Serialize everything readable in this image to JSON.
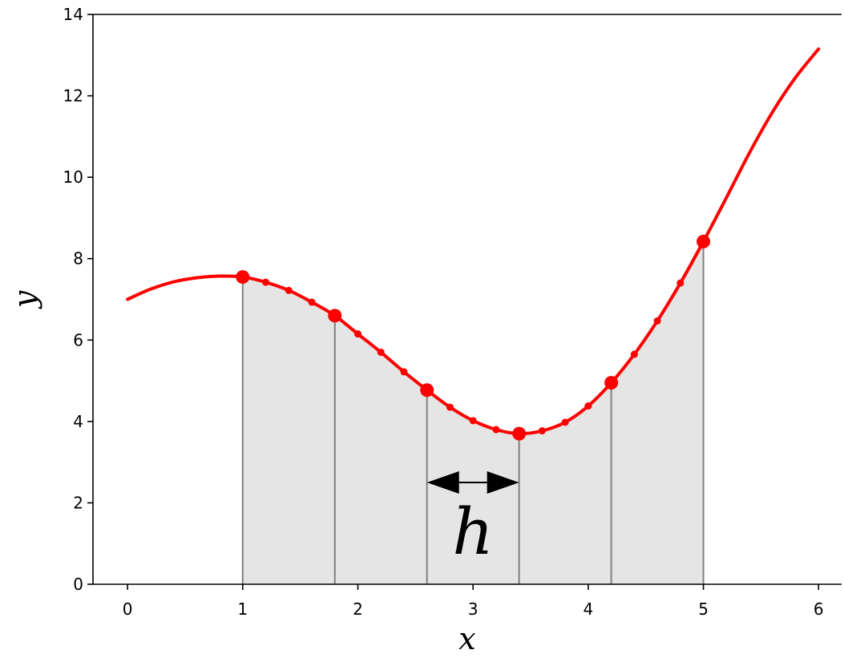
{
  "chart_data": {
    "type": "line",
    "title": "",
    "xlabel": "x",
    "ylabel": "y",
    "xlim": [
      -0.3,
      6.2
    ],
    "ylim": [
      0,
      14
    ],
    "xticks": [
      "0",
      "1",
      "2",
      "3",
      "4",
      "5",
      "6"
    ],
    "yticks": [
      "0",
      "2",
      "4",
      "6",
      "8",
      "10",
      "12",
      "14"
    ],
    "grid": false,
    "legend": "none",
    "curve": {
      "color": "#ff0000",
      "x": [
        0.0,
        0.2,
        0.4,
        0.6,
        0.8,
        1.0,
        1.2,
        1.4,
        1.6,
        1.8,
        2.0,
        2.2,
        2.4,
        2.6,
        2.8,
        3.0,
        3.2,
        3.4,
        3.6,
        3.8,
        4.0,
        4.2,
        4.4,
        4.6,
        4.8,
        5.0,
        5.2,
        5.4,
        5.6,
        5.8,
        6.0
      ],
      "y": [
        7.0,
        7.25,
        7.43,
        7.53,
        7.57,
        7.55,
        7.42,
        7.22,
        6.93,
        6.6,
        6.15,
        5.7,
        5.22,
        4.77,
        4.35,
        4.02,
        3.8,
        3.7,
        3.77,
        3.98,
        4.38,
        4.95,
        5.65,
        6.47,
        7.4,
        8.42,
        9.5,
        10.6,
        11.6,
        12.45,
        13.15
      ]
    },
    "nodes": {
      "x": [
        1.0,
        1.8,
        2.6,
        3.4,
        4.2,
        5.0
      ],
      "y": [
        7.55,
        6.6,
        4.77,
        3.7,
        4.95,
        8.42
      ]
    },
    "quad_points": {
      "x": [
        1.2,
        1.4,
        1.6,
        2.0,
        2.2,
        2.4,
        2.8,
        3.0,
        3.2,
        3.6,
        3.8,
        4.0,
        4.4,
        4.6,
        4.8
      ],
      "y": [
        7.42,
        7.22,
        6.93,
        6.15,
        5.7,
        5.22,
        4.35,
        4.02,
        3.8,
        3.77,
        3.98,
        4.38,
        5.65,
        6.47,
        7.4
      ]
    },
    "shaded_region": {
      "x_from": 1.0,
      "x_to": 5.0,
      "fill": "#e5e5e5",
      "edge": "#808080"
    },
    "annotation": {
      "text": "h",
      "arrow_from_x": 2.6,
      "arrow_to_x": 3.4,
      "arrow_y": 2.5,
      "text_x": 3.0,
      "text_y": 0.75
    }
  }
}
